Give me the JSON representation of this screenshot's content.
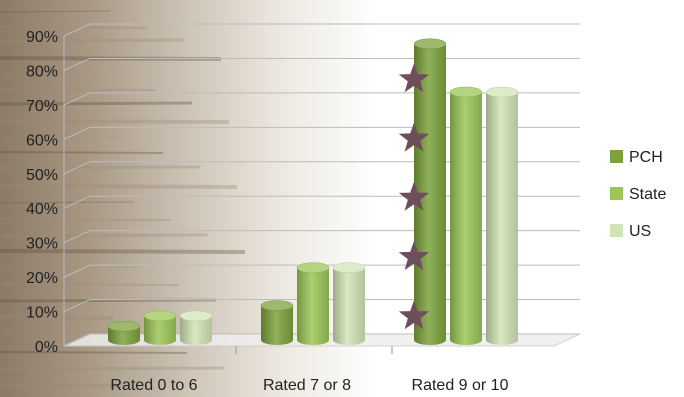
{
  "chart_data": {
    "type": "bar",
    "categories": [
      "Rated 0 to 6",
      "Rated 7 or 8",
      "Rated 9 or 10"
    ],
    "series": [
      {
        "name": "PCH",
        "values": [
          4,
          10,
          86
        ],
        "color": "#7da23d"
      },
      {
        "name": "State",
        "values": [
          7,
          21,
          72
        ],
        "color": "#9cc657"
      },
      {
        "name": "US",
        "values": [
          7,
          21,
          72
        ],
        "color": "#d2e4b6"
      }
    ],
    "y_ticks": [
      "0%",
      "10%",
      "20%",
      "30%",
      "40%",
      "50%",
      "60%",
      "70%",
      "80%",
      "90%"
    ],
    "ylim": [
      0,
      90
    ],
    "grid": true,
    "legend_position": "right",
    "title": "",
    "xlabel": "",
    "ylabel": "",
    "annotations": {
      "marker": "star",
      "marker_color": "#6f4e5c",
      "category": "Rated 9 or 10",
      "series": "PCH",
      "count": 5
    }
  }
}
